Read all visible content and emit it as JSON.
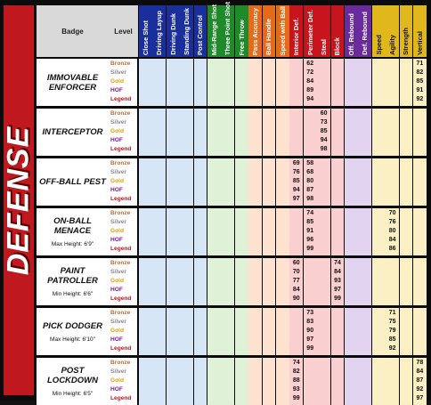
{
  "category": "DEFENSE",
  "headers": {
    "badge": "Badge",
    "level": "Level",
    "attributes": [
      {
        "label": "Close Shot",
        "color": "#1a2e9c",
        "bg": "#d6e6f6",
        "text": "#ffffff"
      },
      {
        "label": "Driving Layup",
        "color": "#1a2e9c",
        "bg": "#d6e6f6",
        "text": "#ffffff"
      },
      {
        "label": "Driving Dunk",
        "color": "#1a2e9c",
        "bg": "#d6e6f6",
        "text": "#ffffff"
      },
      {
        "label": "Standing Dunk",
        "color": "#1a2e9c",
        "bg": "#d6e6f6",
        "text": "#ffffff"
      },
      {
        "label": "Post Control",
        "color": "#1a2e9c",
        "bg": "#d6e6f6",
        "text": "#ffffff"
      },
      {
        "label": "Mid-Range Shot",
        "color": "#1f8a2a",
        "bg": "#dff2d8",
        "text": "#ffffff"
      },
      {
        "label": "Three Point Shot",
        "color": "#1f8a2a",
        "bg": "#dff2d8",
        "text": "#ffffff"
      },
      {
        "label": "Free Throw",
        "color": "#1f8a2a",
        "bg": "#dff2d8",
        "text": "#ffffff"
      },
      {
        "label": "Pass Accuracy",
        "color": "#e56a1a",
        "bg": "#fde3cf",
        "text": "#ffffff"
      },
      {
        "label": "Ball Handle",
        "color": "#e56a1a",
        "bg": "#fde3cf",
        "text": "#ffffff"
      },
      {
        "label": "Speed with Ball",
        "color": "#e56a1a",
        "bg": "#fde3cf",
        "text": "#ffffff"
      },
      {
        "label": "Interior Def.",
        "color": "#c8141c",
        "bg": "#f9cfcf",
        "text": "#ffffff"
      },
      {
        "label": "Perimeter Def.",
        "color": "#c8141c",
        "bg": "#f9cfcf",
        "text": "#ffffff"
      },
      {
        "label": "Steal",
        "color": "#c8141c",
        "bg": "#f9cfcf",
        "text": "#ffffff"
      },
      {
        "label": "Block",
        "color": "#c8141c",
        "bg": "#f9cfcf",
        "text": "#ffffff"
      },
      {
        "label": "Off. Rebound",
        "color": "#6a2c9c",
        "bg": "#e2d3f0",
        "text": "#ffffff"
      },
      {
        "label": "Def. Rebound",
        "color": "#6a2c9c",
        "bg": "#e2d3f0",
        "text": "#ffffff"
      },
      {
        "label": "Speed",
        "color": "#e0b81c",
        "bg": "#fbf0c4",
        "text": "#111111"
      },
      {
        "label": "Agility",
        "color": "#e0b81c",
        "bg": "#fbf0c4",
        "text": "#111111"
      },
      {
        "label": "Strength",
        "color": "#e0b81c",
        "bg": "#fbf0c4",
        "text": "#111111"
      },
      {
        "label": "Vertical",
        "color": "#e0b81c",
        "bg": "#fbf0c4",
        "text": "#111111"
      }
    ]
  },
  "levels": [
    {
      "name": "Bronze",
      "color": "#b8702e"
    },
    {
      "name": "Silver",
      "color": "#8a8a8a"
    },
    {
      "name": "Gold",
      "color": "#d9a400"
    },
    {
      "name": "HOF",
      "color": "#7a1fa2"
    },
    {
      "name": "Legend",
      "color": "#c8141c"
    }
  ],
  "badges": [
    {
      "name": "IMMOVABLE ENFORCER",
      "sub": "",
      "values": [
        {
          "12": "62",
          "20": "71"
        },
        {
          "12": "72",
          "20": "82"
        },
        {
          "12": "84",
          "20": "85"
        },
        {
          "12": "89",
          "20": "91"
        },
        {
          "12": "94",
          "20": "92"
        }
      ]
    },
    {
      "name": "INTERCEPTOR",
      "sub": "",
      "values": [
        {
          "13": "60"
        },
        {
          "13": "73"
        },
        {
          "13": "85"
        },
        {
          "13": "94"
        },
        {
          "13": "98"
        }
      ]
    },
    {
      "name": "OFF-BALL PEST",
      "sub": "",
      "values": [
        {
          "11": "69",
          "12": "58"
        },
        {
          "11": "76",
          "12": "68"
        },
        {
          "11": "85",
          "12": "80"
        },
        {
          "11": "94",
          "12": "87"
        },
        {
          "11": "97",
          "12": "98"
        }
      ]
    },
    {
      "name": "ON-BALL MENACE",
      "sub": "Max Height: 6'9\"",
      "values": [
        {
          "12": "74",
          "18": "70"
        },
        {
          "12": "85",
          "18": "76"
        },
        {
          "12": "91",
          "18": "80"
        },
        {
          "12": "96",
          "18": "84"
        },
        {
          "12": "99",
          "18": "86"
        }
      ]
    },
    {
      "name": "PAINT PATROLLER",
      "sub": "Min Height: 6'6\"",
      "values": [
        {
          "11": "60",
          "14": "74"
        },
        {
          "11": "70",
          "14": "84"
        },
        {
          "11": "77",
          "14": "93"
        },
        {
          "11": "84",
          "14": "97"
        },
        {
          "11": "90",
          "14": "99"
        }
      ]
    },
    {
      "name": "PICK DODGER",
      "sub": "Max Height: 6'10\"",
      "values": [
        {
          "12": "73",
          "18": "71"
        },
        {
          "12": "83",
          "18": "75"
        },
        {
          "12": "90",
          "18": "79"
        },
        {
          "12": "97",
          "18": "85"
        },
        {
          "12": "99",
          "18": "92"
        }
      ]
    },
    {
      "name": "POST LOCKDOWN",
      "sub": "Min Height: 6'5\"",
      "values": [
        {
          "11": "74",
          "20": "78"
        },
        {
          "11": "82",
          "20": "84"
        },
        {
          "11": "88",
          "20": "87"
        },
        {
          "11": "93",
          "20": "92"
        },
        {
          "11": "99",
          "20": "97"
        }
      ]
    }
  ]
}
